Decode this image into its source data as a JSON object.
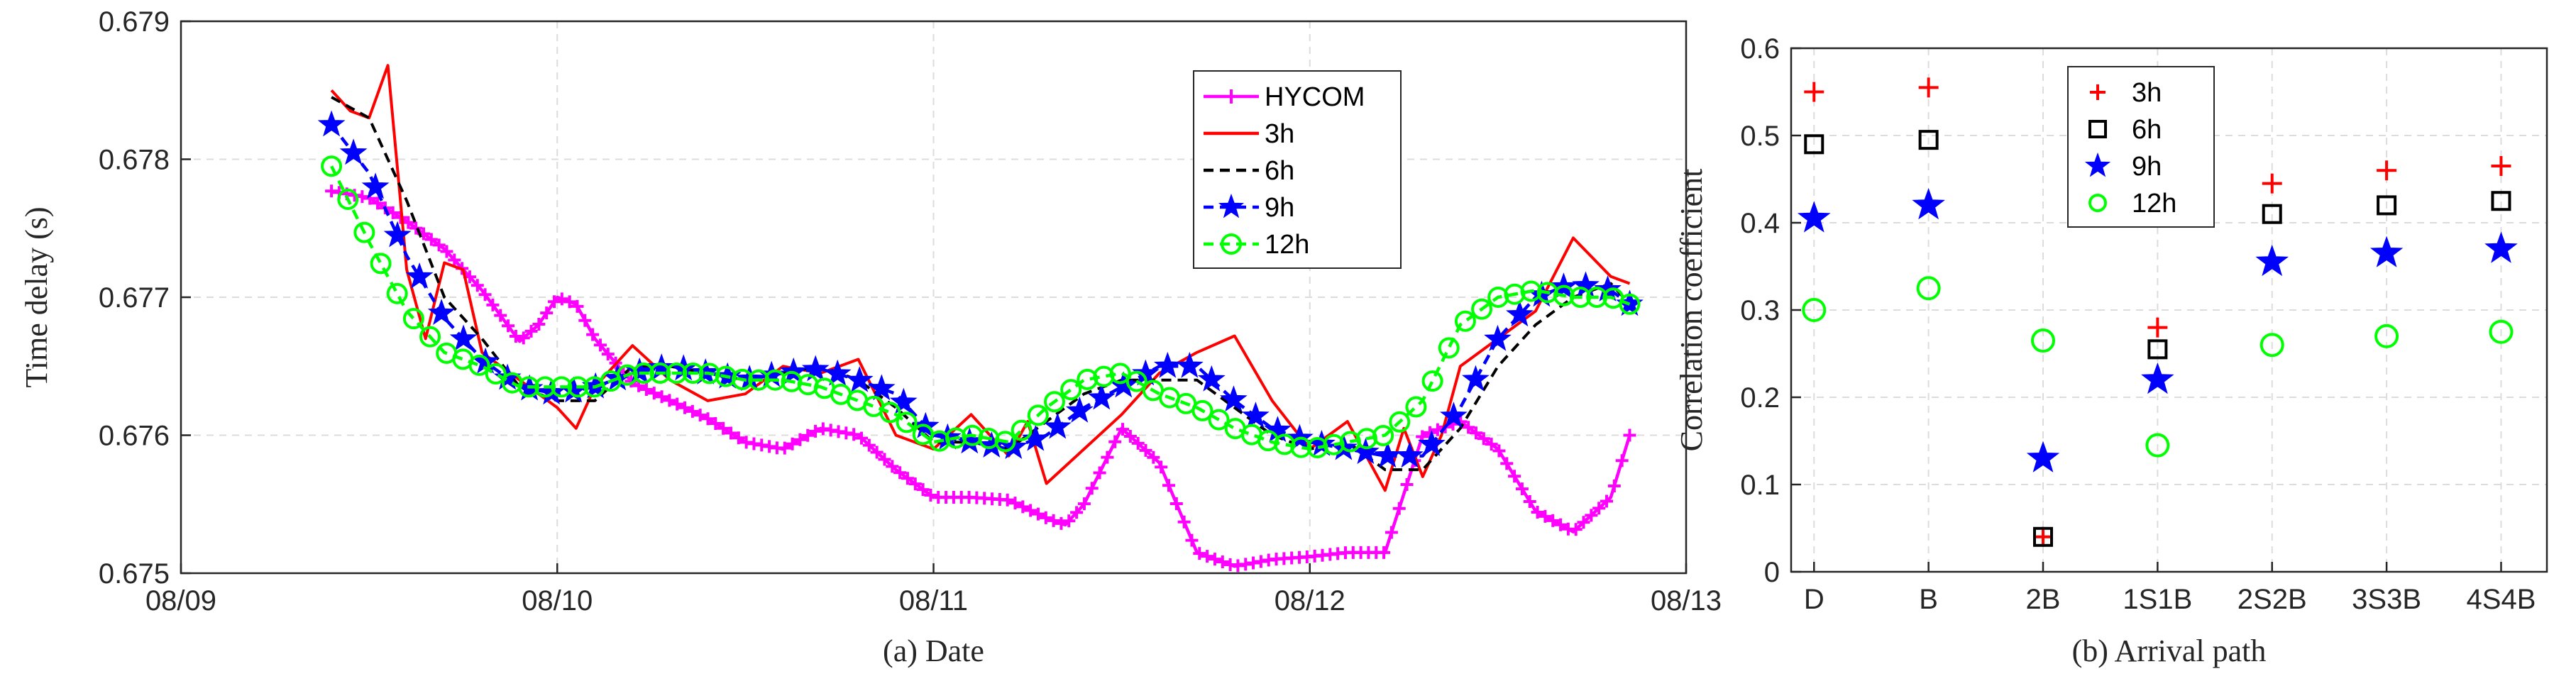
{
  "chart_data": [
    {
      "type": "line",
      "xlabel": "(a) Date",
      "ylabel": "Time delay (s)",
      "xlim": [
        0,
        4
      ],
      "ylim": [
        0.675,
        0.679
      ],
      "x_ticks": [
        0,
        1,
        2,
        3,
        4
      ],
      "x_tick_labels": [
        "08/09",
        "08/10",
        "08/11",
        "08/12",
        "08/13"
      ],
      "y_ticks": [
        0.675,
        0.676,
        0.677,
        0.678,
        0.679
      ],
      "y_tick_labels": [
        "0.675",
        "0.676",
        "0.677",
        "0.678",
        "0.679"
      ],
      "grid": true,
      "legend_position": "top-right",
      "x_unit": "days since 08/09",
      "series": [
        {
          "name": "HYCOM",
          "color": "#ff00ff",
          "marker": "plus",
          "dashed": false,
          "x": [
            0.4,
            0.5,
            0.6,
            0.7,
            0.8,
            0.9,
            0.95,
            1.0,
            1.05,
            1.1,
            1.2,
            1.3,
            1.4,
            1.5,
            1.6,
            1.7,
            1.8,
            1.9,
            2.0,
            2.1,
            2.2,
            2.3,
            2.35,
            2.4,
            2.5,
            2.6,
            2.7,
            2.8,
            2.9,
            3.0,
            3.1,
            3.2,
            3.3,
            3.4,
            3.5,
            3.6,
            3.7,
            3.8,
            3.85
          ],
          "y": [
            0.67777,
            0.67772,
            0.67755,
            0.67735,
            0.67705,
            0.67668,
            0.6768,
            0.677,
            0.67695,
            0.6767,
            0.67638,
            0.67625,
            0.67612,
            0.67595,
            0.6759,
            0.67605,
            0.676,
            0.67575,
            0.67555,
            0.67555,
            0.67553,
            0.6754,
            0.67535,
            0.6755,
            0.67605,
            0.6758,
            0.67515,
            0.67505,
            0.6751,
            0.67512,
            0.67515,
            0.67515,
            0.676,
            0.6761,
            0.6759,
            0.67545,
            0.6753,
            0.67555,
            0.676
          ]
        },
        {
          "name": "3h",
          "color": "#ff0000",
          "marker": "none",
          "dashed": false,
          "x": [
            0.4,
            0.45,
            0.5,
            0.55,
            0.58,
            0.6,
            0.65,
            0.7,
            0.75,
            0.8,
            0.9,
            1.0,
            1.05,
            1.1,
            1.2,
            1.3,
            1.4,
            1.5,
            1.6,
            1.7,
            1.8,
            1.9,
            2.0,
            2.1,
            2.2,
            2.25,
            2.3,
            2.4,
            2.5,
            2.6,
            2.7,
            2.8,
            2.9,
            3.0,
            3.1,
            3.2,
            3.25,
            3.3,
            3.35,
            3.4,
            3.5,
            3.6,
            3.7,
            3.8,
            3.85
          ],
          "y": [
            0.6785,
            0.67835,
            0.6783,
            0.67868,
            0.6778,
            0.6772,
            0.6767,
            0.67725,
            0.6772,
            0.6766,
            0.6764,
            0.6762,
            0.67605,
            0.67635,
            0.67665,
            0.6764,
            0.67625,
            0.6763,
            0.6765,
            0.67645,
            0.67655,
            0.676,
            0.6759,
            0.67615,
            0.67585,
            0.6761,
            0.67565,
            0.6759,
            0.67615,
            0.67645,
            0.6766,
            0.67672,
            0.67625,
            0.6759,
            0.6761,
            0.6756,
            0.67605,
            0.6757,
            0.676,
            0.6765,
            0.6767,
            0.6769,
            0.67743,
            0.67715,
            0.6771
          ]
        },
        {
          "name": "6h",
          "color": "#000000",
          "marker": "none",
          "dashed": true,
          "x": [
            0.4,
            0.5,
            0.6,
            0.7,
            0.8,
            0.9,
            1.0,
            1.1,
            1.2,
            1.3,
            1.4,
            1.5,
            1.6,
            1.7,
            1.8,
            1.9,
            2.0,
            2.1,
            2.2,
            2.3,
            2.4,
            2.5,
            2.6,
            2.7,
            2.8,
            2.9,
            3.0,
            3.1,
            3.2,
            3.3,
            3.4,
            3.5,
            3.6,
            3.7,
            3.8,
            3.85
          ],
          "y": [
            0.67845,
            0.6783,
            0.6777,
            0.677,
            0.6767,
            0.67635,
            0.67625,
            0.67625,
            0.6765,
            0.6765,
            0.67645,
            0.6764,
            0.67645,
            0.6765,
            0.6764,
            0.6762,
            0.67595,
            0.67595,
            0.6759,
            0.6761,
            0.6763,
            0.6764,
            0.6764,
            0.6764,
            0.6762,
            0.676,
            0.6759,
            0.67595,
            0.67575,
            0.67575,
            0.67605,
            0.6765,
            0.6768,
            0.677,
            0.6771,
            0.67695
          ]
        },
        {
          "name": "9h",
          "color": "#0000ff",
          "marker": "star",
          "dashed": true,
          "x": [
            0.4,
            0.5,
            0.6,
            0.7,
            0.8,
            0.9,
            1.0,
            1.1,
            1.2,
            1.3,
            1.4,
            1.5,
            1.6,
            1.7,
            1.8,
            1.9,
            2.0,
            2.1,
            2.2,
            2.3,
            2.4,
            2.5,
            2.6,
            2.7,
            2.8,
            2.9,
            3.0,
            3.1,
            3.2,
            3.3,
            3.4,
            3.5,
            3.6,
            3.7,
            3.8,
            3.85
          ],
          "y": [
            0.67825,
            0.6779,
            0.6773,
            0.67685,
            0.67655,
            0.67635,
            0.6763,
            0.67635,
            0.67645,
            0.6765,
            0.67645,
            0.6764,
            0.67645,
            0.67648,
            0.6764,
            0.6763,
            0.676,
            0.67595,
            0.6759,
            0.676,
            0.6762,
            0.67635,
            0.6765,
            0.6765,
            0.67625,
            0.67605,
            0.67595,
            0.6759,
            0.67585,
            0.67585,
            0.6762,
            0.6767,
            0.677,
            0.6771,
            0.67705,
            0.67695
          ]
        },
        {
          "name": "12h",
          "color": "#00ff00",
          "marker": "circle",
          "dashed": true,
          "x": [
            0.4,
            0.5,
            0.6,
            0.7,
            0.8,
            0.9,
            1.0,
            1.1,
            1.2,
            1.3,
            1.4,
            1.5,
            1.6,
            1.7,
            1.8,
            1.9,
            2.0,
            2.1,
            2.2,
            2.3,
            2.4,
            2.5,
            2.6,
            2.7,
            2.8,
            2.9,
            3.0,
            3.1,
            3.2,
            3.3,
            3.4,
            3.5,
            3.6,
            3.7,
            3.8,
            3.85
          ],
          "y": [
            0.67795,
            0.6774,
            0.6769,
            0.6766,
            0.6765,
            0.67635,
            0.67635,
            0.67635,
            0.67645,
            0.67645,
            0.67645,
            0.6764,
            0.6764,
            0.67635,
            0.67625,
            0.67615,
            0.67595,
            0.676,
            0.67595,
            0.6762,
            0.6764,
            0.67645,
            0.6763,
            0.6762,
            0.67605,
            0.67595,
            0.6759,
            0.67595,
            0.676,
            0.67625,
            0.6768,
            0.677,
            0.67705,
            0.677,
            0.677,
            0.67695
          ]
        }
      ]
    },
    {
      "type": "scatter",
      "xlabel": "(b) Arrival path",
      "ylabel": "Correlation coefficient",
      "categories": [
        "D",
        "B",
        "2B",
        "1S1B",
        "2S2B",
        "3S3B",
        "4S4B"
      ],
      "ylim": [
        0,
        0.6
      ],
      "y_ticks": [
        0,
        0.1,
        0.2,
        0.3,
        0.4,
        0.5,
        0.6
      ],
      "y_tick_labels": [
        "0",
        "0.1",
        "0.2",
        "0.3",
        "0.4",
        "0.5",
        "0.6"
      ],
      "grid": true,
      "legend_position": "top-left",
      "series": [
        {
          "name": "3h",
          "color": "#ff0000",
          "marker": "plus",
          "values": [
            0.55,
            0.555,
            0.04,
            0.28,
            0.445,
            0.46,
            0.465
          ]
        },
        {
          "name": "6h",
          "color": "#000000",
          "marker": "square",
          "values": [
            0.49,
            0.495,
            0.04,
            0.255,
            0.41,
            0.42,
            0.425
          ]
        },
        {
          "name": "9h",
          "color": "#0000ff",
          "marker": "star",
          "values": [
            0.405,
            0.42,
            0.13,
            0.22,
            0.355,
            0.365,
            0.37
          ]
        },
        {
          "name": "12h",
          "color": "#00ff00",
          "marker": "circle",
          "values": [
            0.3,
            0.325,
            0.265,
            0.145,
            0.26,
            0.27,
            0.275
          ]
        }
      ]
    }
  ]
}
